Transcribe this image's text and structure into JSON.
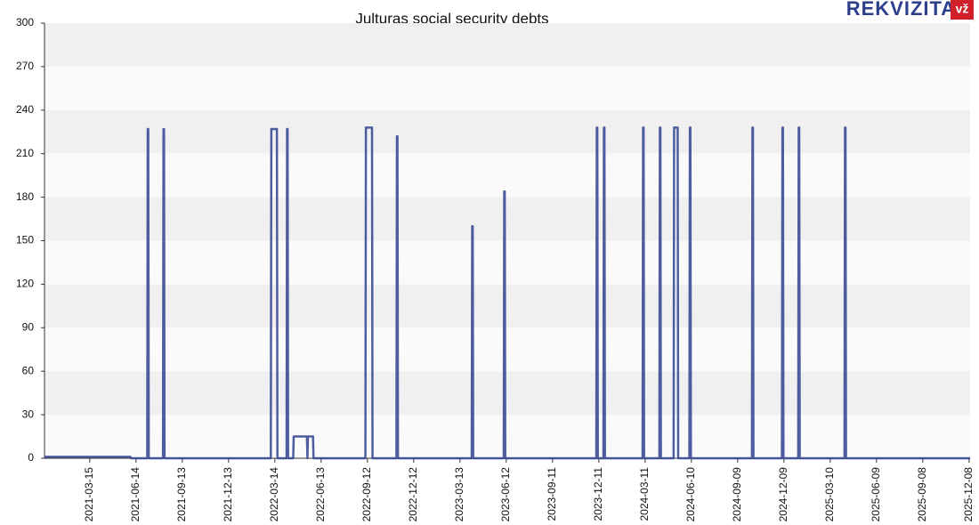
{
  "logo": {
    "text": "REKVIZITAI",
    "badge": "vž"
  },
  "chart_data": {
    "type": "line",
    "title": "Julturas social security debts",
    "x": [
      "2020-12-16",
      "2021-06-03",
      "2021-06-04",
      "2021-07-06",
      "2021-07-07",
      "2021-07-08",
      "2021-07-09",
      "2021-08-06",
      "2021-08-07",
      "2021-08-08",
      "2021-08-09",
      "2022-03-06",
      "2022-03-07",
      "2022-03-18",
      "2022-03-19",
      "2022-04-06",
      "2022-04-07",
      "2022-04-08",
      "2022-04-09",
      "2022-04-19",
      "2022-04-20",
      "2022-05-16",
      "2022-05-17",
      "2022-05-17",
      "2022-05-18",
      "2022-05-28",
      "2022-05-29",
      "2022-09-08",
      "2022-09-09",
      "2022-09-21",
      "2022-09-22",
      "2022-11-08",
      "2022-11-09",
      "2022-11-10",
      "2022-11-11",
      "2023-04-05",
      "2023-04-06",
      "2023-04-07",
      "2023-04-08",
      "2023-06-07",
      "2023-06-08",
      "2023-06-09",
      "2023-06-10",
      "2023-12-06",
      "2023-12-07",
      "2023-12-08",
      "2023-12-09",
      "2023-12-20",
      "2023-12-21",
      "2023-12-22",
      "2023-12-23",
      "2024-03-06",
      "2024-03-07",
      "2024-03-08",
      "2024-03-09",
      "2024-04-08",
      "2024-04-09",
      "2024-04-10",
      "2024-04-11",
      "2024-05-06",
      "2024-05-07",
      "2024-05-14",
      "2024-05-15",
      "2024-06-06",
      "2024-06-07",
      "2024-06-08",
      "2024-06-09",
      "2024-10-07",
      "2024-10-08",
      "2024-10-09",
      "2024-10-10",
      "2024-12-05",
      "2024-12-06",
      "2024-12-07",
      "2024-12-08",
      "2025-01-06",
      "2025-01-07",
      "2025-01-08",
      "2025-01-09",
      "2025-04-07",
      "2025-04-08",
      "2025-04-09",
      "2025-04-10",
      "2025-12-10"
    ],
    "series": [
      {
        "name": "Julturas",
        "color": "#3b4b95",
        "values": [
          1,
          1,
          0,
          0,
          227,
          227,
          0,
          0,
          227,
          227,
          0,
          0,
          227,
          227,
          0,
          0,
          227,
          227,
          0,
          0,
          15,
          15,
          0,
          0,
          15,
          15,
          0,
          0,
          228,
          228,
          0,
          0,
          222,
          222,
          0,
          0,
          160,
          160,
          0,
          0,
          184,
          184,
          0,
          0,
          228,
          228,
          0,
          0,
          228,
          228,
          0,
          0,
          228,
          228,
          0,
          0,
          228,
          228,
          0,
          0,
          228,
          228,
          0,
          0,
          228,
          228,
          0,
          0,
          228,
          228,
          0,
          0,
          228,
          228,
          0,
          0,
          228,
          228,
          0,
          0,
          228,
          228,
          0,
          0
        ]
      }
    ],
    "xlim": [
      "2020-12-16",
      "2025-12-10"
    ],
    "xticks": [
      "2021-03-15",
      "2021-06-14",
      "2021-09-13",
      "2021-12-13",
      "2022-03-14",
      "2022-06-13",
      "2022-09-12",
      "2022-12-12",
      "2023-03-13",
      "2023-06-12",
      "2023-09-11",
      "2023-12-11",
      "2024-03-11",
      "2024-06-10",
      "2024-09-09",
      "2024-12-09",
      "2025-03-10",
      "2025-06-09",
      "2025-09-08",
      "2025-12-08"
    ],
    "ylim": [
      0,
      300
    ],
    "yticks": [
      0,
      30,
      60,
      90,
      120,
      150,
      180,
      210,
      240,
      270,
      300
    ],
    "grid": "bands"
  }
}
